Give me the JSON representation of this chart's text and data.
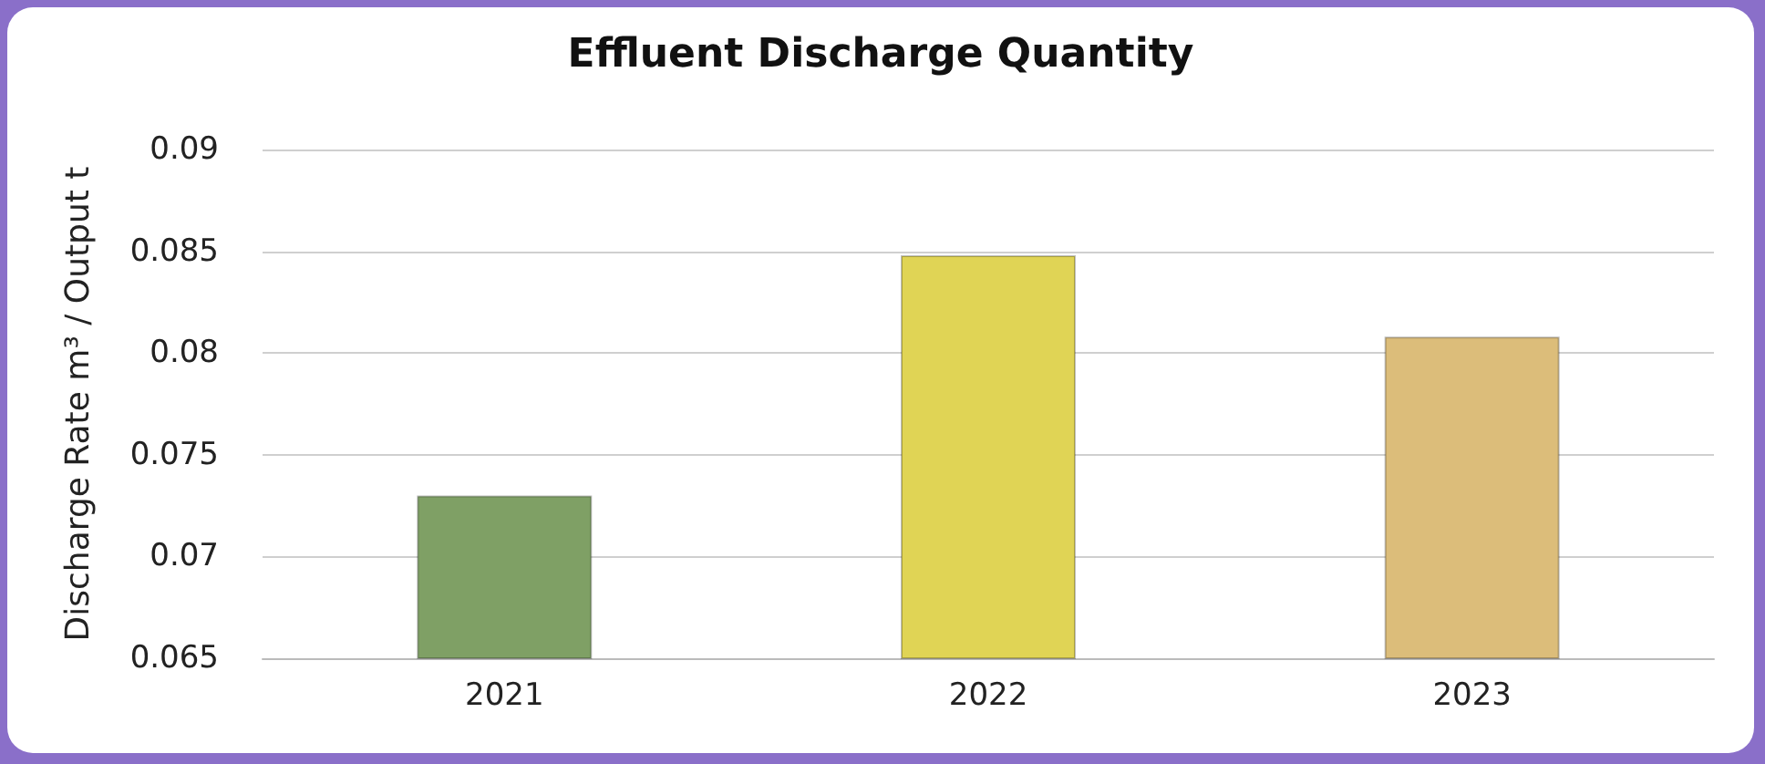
{
  "chart_data": {
    "type": "bar",
    "title": "Effluent Discharge Quantity",
    "ylabel": "Discharge Rate m³ / Output t",
    "categories": [
      "2021",
      "2022",
      "2023"
    ],
    "values": [
      0.073,
      0.0848,
      0.0808
    ],
    "colors": [
      "#7fa065",
      "#e0d455",
      "#dcbd7a"
    ],
    "ylim": [
      0.065,
      0.09
    ],
    "yticks": [
      0.065,
      0.07,
      0.075,
      0.08,
      0.085,
      0.09
    ],
    "grid": "y"
  }
}
